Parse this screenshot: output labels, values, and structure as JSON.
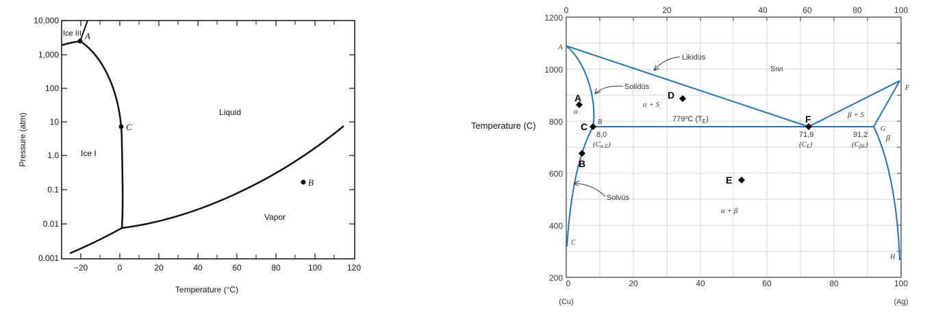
{
  "water_diagram": {
    "ylabel": "Pressure (atm)",
    "xlabel": "Temperature (°C)",
    "y_ticks": [
      "10,000",
      "1,000",
      "100",
      "10",
      "1.0",
      "0.1",
      "0.01",
      "0.001"
    ],
    "x_ticks": [
      "−20",
      "0",
      "20",
      "40",
      "60",
      "80",
      "100",
      "120"
    ],
    "regions": {
      "ice3": "Ice III",
      "ice1": "Ice I",
      "liquid": "Liquid",
      "vapor": "Vapor"
    },
    "points": {
      "A": "A",
      "B": "B",
      "C": "C"
    }
  },
  "cuag_diagram": {
    "ylabel": "Temperature (C)",
    "y_ticks": [
      "1200",
      "1000",
      "800",
      "600",
      "400",
      "200"
    ],
    "bottom_ticks": [
      "0",
      "20",
      "40",
      "60",
      "80",
      "100"
    ],
    "top_ticks": [
      "0",
      "20",
      "40",
      "60",
      "80",
      "100"
    ],
    "left_end": "(Cu)",
    "right_end": "(Ag)",
    "lines": {
      "liquidus": "Likidüs",
      "solidus": "Solidüs",
      "solvus": "Solvüs"
    },
    "regions": {
      "liquid": "Sıvı",
      "alpha": "α",
      "alpha_liquid": "α + S",
      "beta_liquid": "β + S",
      "beta": "β",
      "alpha_beta": "α + β"
    },
    "eutectic_temp": "779ºC (T",
    "eutectic_temp_sub": "E",
    "eutectic_temp_close": ")",
    "compositions": {
      "alpha_e_value": "8,0",
      "alpha_e_label": "(C",
      "alpha_e_sub": "α E",
      "eutectic_value": "71,9",
      "eutectic_label": "(C",
      "eutectic_sub": "E",
      "beta_e_value": "91,2",
      "beta_e_label": "(C",
      "beta_e_sub": "βE"
    },
    "vertex_labels": {
      "A": "A",
      "B": "B",
      "C": "C",
      "F": "F",
      "G": "G",
      "H": "H"
    },
    "markers": {
      "A": "A",
      "B": "B",
      "C": "C",
      "D": "D",
      "E": "E",
      "F": "F"
    }
  }
}
